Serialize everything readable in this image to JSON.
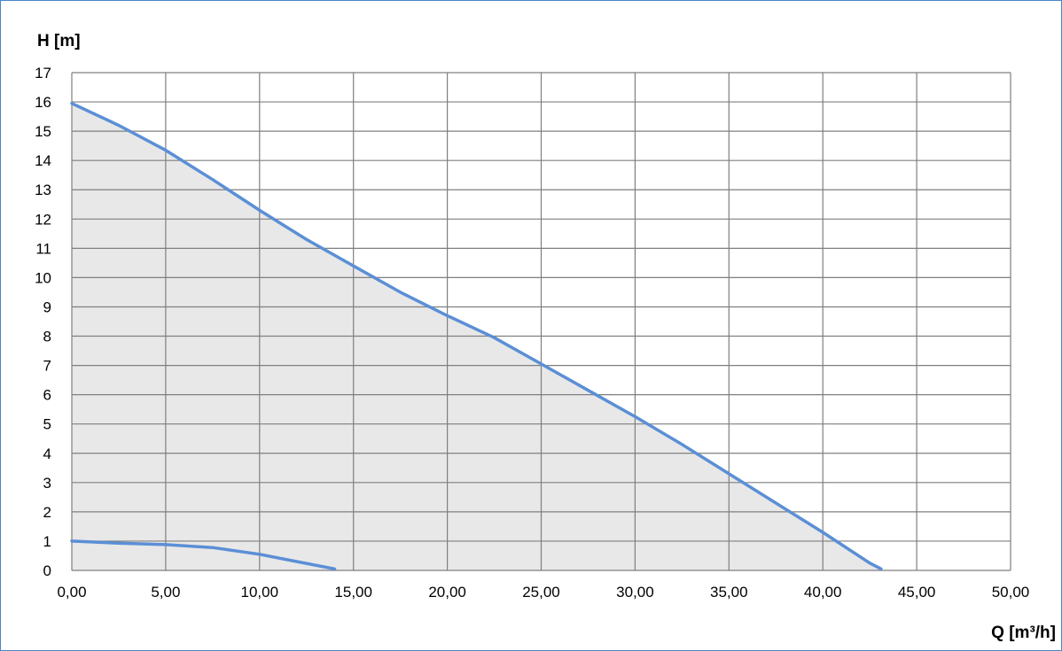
{
  "chart_data": {
    "type": "area",
    "title": "",
    "ylabel": "H [m]",
    "xlabel": "Q [m³/h]",
    "xlim": [
      0,
      50
    ],
    "ylim": [
      0,
      17
    ],
    "x_ticks": [
      "0,00",
      "5,00",
      "10,00",
      "15,00",
      "20,00",
      "25,00",
      "30,00",
      "35,00",
      "40,00",
      "45,00",
      "50,00"
    ],
    "x_tick_values": [
      0,
      5,
      10,
      15,
      20,
      25,
      30,
      35,
      40,
      45,
      50
    ],
    "y_ticks": [
      "0",
      "1",
      "2",
      "3",
      "4",
      "5",
      "6",
      "7",
      "8",
      "9",
      "10",
      "11",
      "12",
      "13",
      "14",
      "15",
      "16",
      "17"
    ],
    "y_tick_values": [
      0,
      1,
      2,
      3,
      4,
      5,
      6,
      7,
      8,
      9,
      10,
      11,
      12,
      13,
      14,
      15,
      16,
      17
    ],
    "grid": true,
    "series": [
      {
        "points": [
          [
            0,
            15.95
          ],
          [
            2.5,
            15.2
          ],
          [
            5,
            14.35
          ],
          [
            7.5,
            13.35
          ],
          [
            10,
            12.3
          ],
          [
            12.5,
            11.3
          ],
          [
            15,
            10.4
          ],
          [
            17.5,
            9.5
          ],
          [
            20,
            8.7
          ],
          [
            22.5,
            7.95
          ],
          [
            25,
            7.05
          ],
          [
            27.5,
            6.15
          ],
          [
            30,
            5.25
          ],
          [
            32.5,
            4.3
          ],
          [
            35,
            3.3
          ],
          [
            37.5,
            2.3
          ],
          [
            40,
            1.3
          ],
          [
            42.5,
            0.25
          ],
          [
            43.1,
            0.05
          ]
        ],
        "filled": true
      },
      {
        "points": [
          [
            0,
            1.0
          ],
          [
            2.5,
            0.93
          ],
          [
            5,
            0.88
          ],
          [
            7.5,
            0.78
          ],
          [
            10,
            0.55
          ],
          [
            12,
            0.3
          ],
          [
            14,
            0.05
          ]
        ],
        "filled": false
      }
    ]
  },
  "colors": {
    "line": "#5b8fd6",
    "fill": "#e8e8e8",
    "grid": "#7f7f7f",
    "frame": "#4a86c5"
  }
}
